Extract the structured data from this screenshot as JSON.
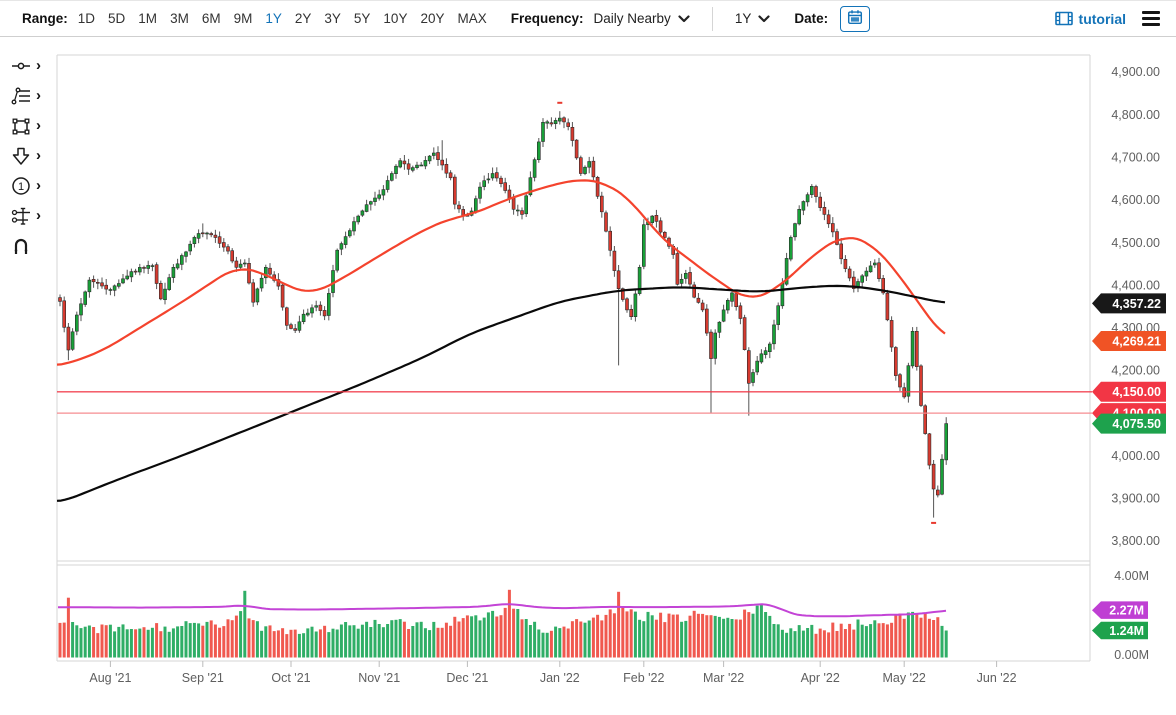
{
  "toolbar": {
    "range_label": "Range:",
    "ranges": [
      "1D",
      "5D",
      "1M",
      "3M",
      "6M",
      "9M",
      "1Y",
      "2Y",
      "3Y",
      "5Y",
      "10Y",
      "20Y",
      "MAX"
    ],
    "selected_range": "1Y",
    "frequency_label": "Frequency:",
    "frequency_value": "Daily Nearby",
    "period_value": "1Y",
    "date_label": "Date:",
    "tutorial_label": "tutorial"
  },
  "sidebar": {
    "tools": [
      {
        "name": "trendline-tool",
        "has_submenu": true
      },
      {
        "name": "fibonacci-tool",
        "has_submenu": true
      },
      {
        "name": "shapes-tool",
        "has_submenu": true
      },
      {
        "name": "arrow-annotation-tool",
        "has_submenu": true
      },
      {
        "name": "number-annotation-tool",
        "has_submenu": true
      },
      {
        "name": "indicator-adjust-tool",
        "has_submenu": true
      },
      {
        "name": "magnet-snap-tool",
        "has_submenu": false
      }
    ]
  },
  "colors": {
    "accent_blue": "#1373b8",
    "candle_up": "#18a038",
    "candle_down": "#d63a2f",
    "candle_stroke": "#2b2b2b",
    "wick": "#555555",
    "vol_up": "#2fae66",
    "vol_down": "#f0594f",
    "ma_red": "#f4432d",
    "ma_black": "#0a0a0a",
    "vol_ma": "#c344d6",
    "axis_text": "#5f5f5f",
    "border": "#d6d6d6",
    "flag_black": "#181818",
    "flag_orange": "#f05325",
    "flag_red": "#f23645",
    "flag_green": "#1ea24d",
    "flag_magenta": "#bf3fd3",
    "marker_red": "#e8392e"
  },
  "chart_data": {
    "type": "candlestick",
    "title": "",
    "xlabel": "",
    "ylabel": "",
    "legend_position": "none",
    "grid": false,
    "num_days": 212,
    "seed": 7,
    "y_axis_main": {
      "range": [
        3748,
        4940
      ],
      "tick_values": [
        4900,
        4800,
        4700,
        4600,
        4500,
        4400,
        4300,
        4200,
        4100,
        4000,
        3900,
        3800
      ],
      "tick_labels": [
        "4,900.00",
        "4,800.00",
        "4,700.00",
        "4,600.00",
        "4,500.00",
        "4,400.00",
        "4,300.00",
        "4,200.00",
        "4,100.00",
        "4,000.00",
        "3,900.00",
        "3,800.00"
      ]
    },
    "y_axis_volume": {
      "range": [
        0,
        4.55
      ],
      "tick_values": [
        4,
        0
      ],
      "tick_labels": [
        "4.00M",
        "0.00M"
      ]
    },
    "x_axis": {
      "labels": [
        "Aug '21",
        "Sep '21",
        "Oct '21",
        "Nov '21",
        "Dec '21",
        "Jan '22",
        "Feb '22",
        "Mar '22",
        "Apr '22",
        "May '22",
        "Jun '22"
      ],
      "label_days": [
        12,
        34,
        55,
        76,
        97,
        119,
        139,
        158,
        181,
        201,
        223
      ]
    },
    "close_anchors": [
      [
        0,
        4362
      ],
      [
        2,
        4248
      ],
      [
        4,
        4330
      ],
      [
        7,
        4412
      ],
      [
        10,
        4398
      ],
      [
        12,
        4390
      ],
      [
        15,
        4415
      ],
      [
        17,
        4432
      ],
      [
        20,
        4440
      ],
      [
        22,
        4446
      ],
      [
        24,
        4368
      ],
      [
        27,
        4442
      ],
      [
        30,
        4478
      ],
      [
        32,
        4512
      ],
      [
        34,
        4522
      ],
      [
        37,
        4512
      ],
      [
        40,
        4480
      ],
      [
        42,
        4442
      ],
      [
        44,
        4452
      ],
      [
        46,
        4360
      ],
      [
        49,
        4442
      ],
      [
        52,
        4398
      ],
      [
        54,
        4306
      ],
      [
        56,
        4294
      ],
      [
        58,
        4332
      ],
      [
        61,
        4352
      ],
      [
        63,
        4328
      ],
      [
        66,
        4482
      ],
      [
        69,
        4528
      ],
      [
        71,
        4562
      ],
      [
        74,
        4596
      ],
      [
        76,
        4612
      ],
      [
        79,
        4662
      ],
      [
        81,
        4692
      ],
      [
        83,
        4672
      ],
      [
        86,
        4682
      ],
      [
        89,
        4710
      ],
      [
        91,
        4682
      ],
      [
        93,
        4652
      ],
      [
        94,
        4590
      ],
      [
        96,
        4562
      ],
      [
        98,
        4574
      ],
      [
        100,
        4630
      ],
      [
        103,
        4662
      ],
      [
        105,
        4638
      ],
      [
        106,
        4622
      ],
      [
        108,
        4578
      ],
      [
        110,
        4566
      ],
      [
        112,
        4652
      ],
      [
        115,
        4782
      ],
      [
        117,
        4778
      ],
      [
        119,
        4792
      ],
      [
        121,
        4772
      ],
      [
        124,
        4662
      ],
      [
        126,
        4690
      ],
      [
        129,
        4572
      ],
      [
        131,
        4482
      ],
      [
        133,
        4392
      ],
      [
        135,
        4342
      ],
      [
        136,
        4326
      ],
      [
        138,
        4442
      ],
      [
        139,
        4542
      ],
      [
        141,
        4562
      ],
      [
        144,
        4512
      ],
      [
        146,
        4472
      ],
      [
        147,
        4402
      ],
      [
        149,
        4428
      ],
      [
        151,
        4372
      ],
      [
        153,
        4342
      ],
      [
        155,
        4228
      ],
      [
        156,
        4288
      ],
      [
        158,
        4342
      ],
      [
        160,
        4382
      ],
      [
        162,
        4322
      ],
      [
        164,
        4170
      ],
      [
        166,
        4222
      ],
      [
        169,
        4262
      ],
      [
        171,
        4352
      ],
      [
        174,
        4512
      ],
      [
        176,
        4578
      ],
      [
        179,
        4632
      ],
      [
        181,
        4582
      ],
      [
        184,
        4525
      ],
      [
        186,
        4462
      ],
      [
        189,
        4392
      ],
      [
        191,
        4422
      ],
      [
        194,
        4452
      ],
      [
        196,
        4382
      ],
      [
        199,
        4188
      ],
      [
        201,
        4138
      ],
      [
        203,
        4292
      ],
      [
        205,
        4118
      ],
      [
        206,
        4052
      ],
      [
        207,
        3978
      ],
      [
        208,
        3922
      ],
      [
        209,
        3908
      ],
      [
        210,
        3992
      ],
      [
        211,
        4075.5
      ]
    ],
    "wick_high_overrides": {
      "34": 4545,
      "91": 4740,
      "119": 4808,
      "179": 4637
    },
    "wick_low_overrides": {
      "2": 4224,
      "133": 4212,
      "155": 4101,
      "164": 4094,
      "208": 3855
    },
    "extreme_markers": {
      "high_day": 119,
      "high_value": 4830,
      "low_day": 208,
      "low_value": 3845
    },
    "ma_black_anchors": [
      [
        0,
        3890
      ],
      [
        14,
        3945
      ],
      [
        29,
        4000
      ],
      [
        43,
        4055
      ],
      [
        57,
        4110
      ],
      [
        71,
        4165
      ],
      [
        86,
        4228
      ],
      [
        98,
        4288
      ],
      [
        110,
        4330
      ],
      [
        119,
        4362
      ],
      [
        133,
        4388
      ],
      [
        148,
        4396
      ],
      [
        157,
        4390
      ],
      [
        167,
        4384
      ],
      [
        176,
        4394
      ],
      [
        186,
        4400
      ],
      [
        195,
        4390
      ],
      [
        202,
        4376
      ],
      [
        211,
        4357.22
      ]
    ],
    "ma_red_anchors": [
      [
        0,
        4210
      ],
      [
        10,
        4245
      ],
      [
        19,
        4300
      ],
      [
        29,
        4360
      ],
      [
        39,
        4425
      ],
      [
        42,
        4445
      ],
      [
        48,
        4430
      ],
      [
        56,
        4390
      ],
      [
        60,
        4378
      ],
      [
        68,
        4420
      ],
      [
        77,
        4475
      ],
      [
        87,
        4532
      ],
      [
        94,
        4560
      ],
      [
        98,
        4565
      ],
      [
        106,
        4600
      ],
      [
        116,
        4632
      ],
      [
        124,
        4650
      ],
      [
        130,
        4640
      ],
      [
        136,
        4600
      ],
      [
        143,
        4510
      ],
      [
        150,
        4460
      ],
      [
        155,
        4420
      ],
      [
        160,
        4390
      ],
      [
        164,
        4360
      ],
      [
        172,
        4400
      ],
      [
        179,
        4470
      ],
      [
        187,
        4520
      ],
      [
        193,
        4500
      ],
      [
        198,
        4448
      ],
      [
        203,
        4378
      ],
      [
        208,
        4310
      ],
      [
        211,
        4269.21
      ]
    ],
    "volume_anchors": [
      [
        0,
        1.5
      ],
      [
        5,
        1.4
      ],
      [
        10,
        1.3
      ],
      [
        20,
        1.35
      ],
      [
        30,
        1.45
      ],
      [
        40,
        1.6
      ],
      [
        44,
        2.1
      ],
      [
        48,
        1.5
      ],
      [
        55,
        1.25
      ],
      [
        60,
        1.3
      ],
      [
        70,
        1.5
      ],
      [
        80,
        1.55
      ],
      [
        90,
        1.5
      ],
      [
        95,
        1.8
      ],
      [
        100,
        1.9
      ],
      [
        105,
        2.1
      ],
      [
        107,
        2.5
      ],
      [
        110,
        1.9
      ],
      [
        115,
        1.3
      ],
      [
        119,
        1.35
      ],
      [
        125,
        1.8
      ],
      [
        130,
        2.0
      ],
      [
        134,
        2.2
      ],
      [
        138,
        2.0
      ],
      [
        142,
        1.9
      ],
      [
        147,
        1.8
      ],
      [
        151,
        2.1
      ],
      [
        155,
        2.0
      ],
      [
        158,
        1.7
      ],
      [
        162,
        1.9
      ],
      [
        165,
        2.3
      ],
      [
        168,
        2.3
      ],
      [
        172,
        1.3
      ],
      [
        176,
        1.25
      ],
      [
        180,
        1.3
      ],
      [
        185,
        1.45
      ],
      [
        190,
        1.55
      ],
      [
        195,
        1.75
      ],
      [
        200,
        1.9
      ],
      [
        204,
        2.0
      ],
      [
        207,
        2.1
      ],
      [
        209,
        1.9
      ],
      [
        210,
        1.6
      ],
      [
        211,
        1.24
      ]
    ],
    "volume_spikes": {
      "2": 2.9,
      "44": 3.25,
      "107": 3.3,
      "133": 3.2,
      "211": 1.24
    },
    "volume_ma_anchors": [
      [
        0,
        2.42
      ],
      [
        20,
        2.4
      ],
      [
        40,
        2.44
      ],
      [
        44,
        2.56
      ],
      [
        48,
        2.32
      ],
      [
        60,
        2.3
      ],
      [
        80,
        2.36
      ],
      [
        100,
        2.44
      ],
      [
        107,
        2.62
      ],
      [
        112,
        2.44
      ],
      [
        119,
        2.36
      ],
      [
        130,
        2.44
      ],
      [
        140,
        2.42
      ],
      [
        152,
        2.44
      ],
      [
        160,
        2.46
      ],
      [
        166,
        2.56
      ],
      [
        170,
        2.6
      ],
      [
        173,
        2.1
      ],
      [
        178,
        1.97
      ],
      [
        185,
        1.95
      ],
      [
        195,
        2.02
      ],
      [
        203,
        2.06
      ],
      [
        208,
        2.16
      ],
      [
        211,
        2.27
      ]
    ],
    "support_lines": [
      {
        "value": 4150,
        "label": "4,150.00",
        "color": "#f23645",
        "opacity": 0.9
      },
      {
        "value": 4100,
        "label": "4,100.00",
        "color": "#f5868c",
        "opacity": 0.95
      }
    ],
    "price_flags": [
      {
        "name": "support-flag-4150",
        "label": "4,150.00",
        "value": 4150,
        "color": "#f23645"
      },
      {
        "name": "support-flag-4100",
        "label": "4,100.00",
        "value": 4100,
        "color": "#f23645"
      },
      {
        "name": "last-price-flag",
        "label": "4,075.50",
        "value": 4075.5,
        "color": "#1ea24d"
      },
      {
        "name": "ma-black-flag",
        "label": "4,357.22",
        "value": 4357.22,
        "color": "#181818"
      },
      {
        "name": "ma-red-flag",
        "label": "4,269.21",
        "value": 4269.21,
        "color": "#f05325"
      }
    ],
    "volume_flags": [
      {
        "name": "volume-ma-flag",
        "label": "2.27M",
        "value": 2.27,
        "color": "#bf3fd3"
      },
      {
        "name": "last-volume-flag",
        "label": "1.24M",
        "value": 1.24,
        "color": "#1ea24d"
      }
    ],
    "last_close": 4075.5,
    "last_volume_m": 1.24
  }
}
